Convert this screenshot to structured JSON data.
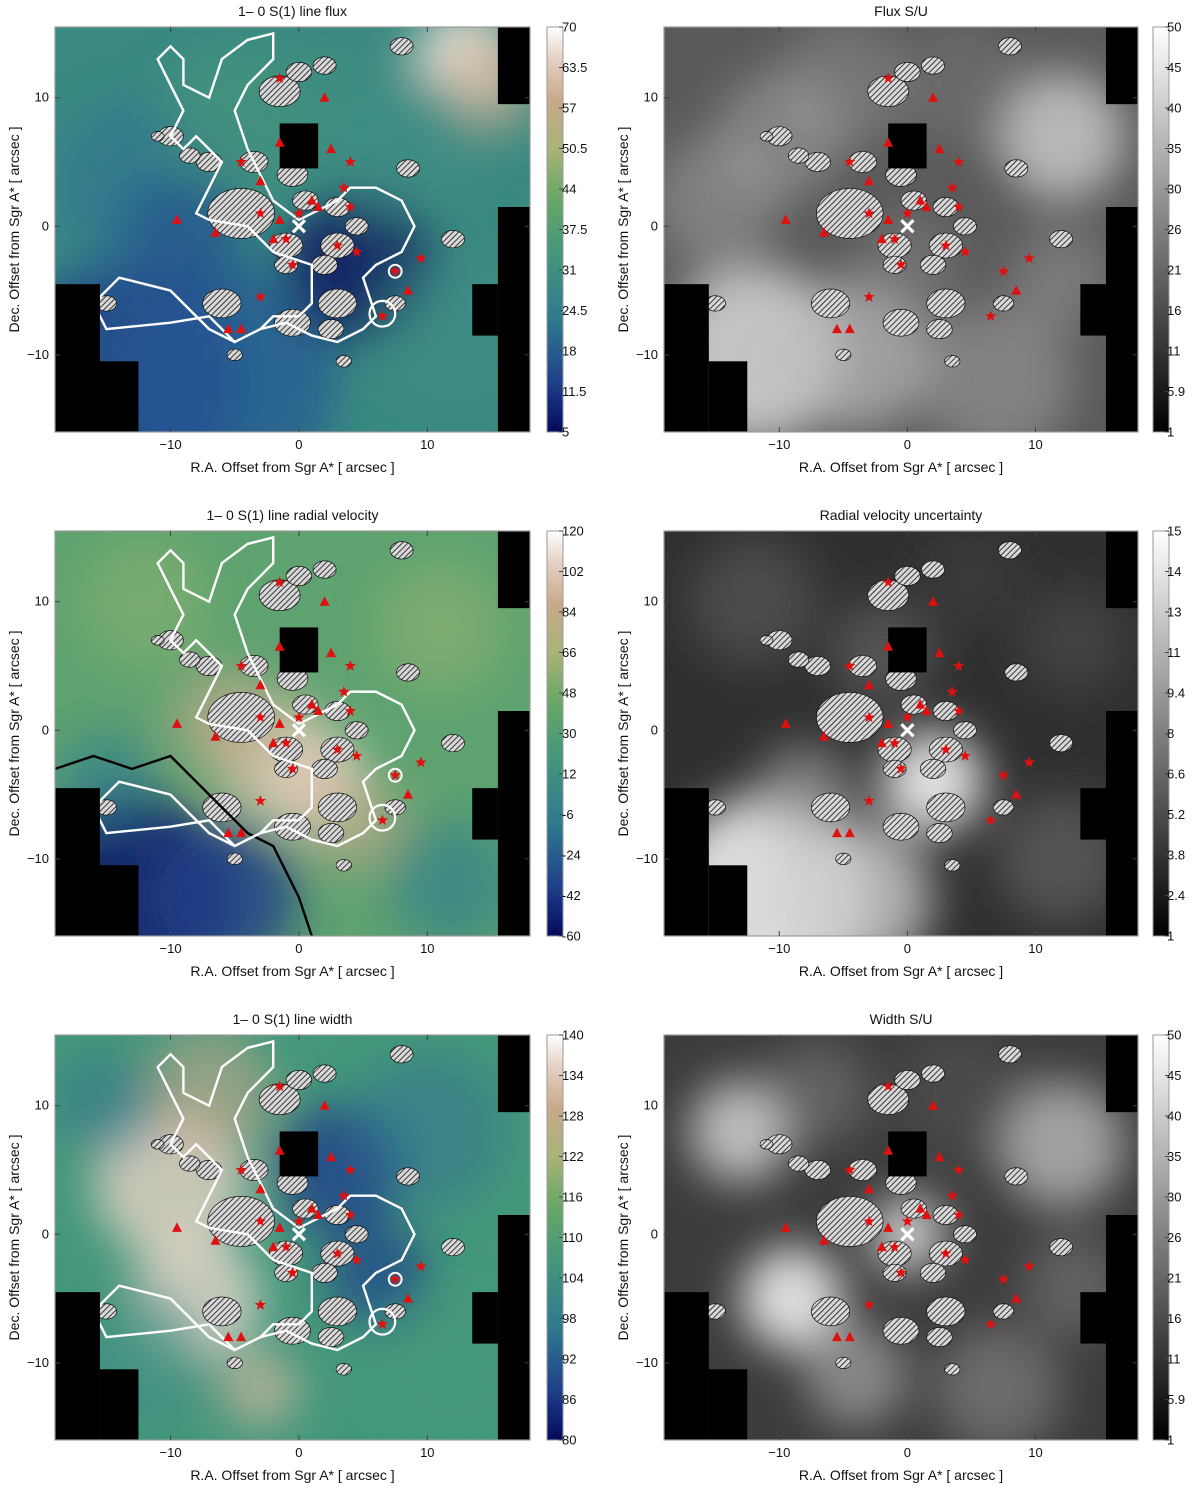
{
  "figure": {
    "background": "#ffffff"
  },
  "chart_data": [
    {
      "type": "heatmap",
      "title": "1– 0 S(1) line flux",
      "xlabel": "R.A. Offset from Sgr A* [ arcsec ]",
      "ylabel": "Dec. Offset from Sgr A* [ arcsec ]",
      "xlim": [
        -19,
        18
      ],
      "ylim": [
        -16,
        15.5
      ],
      "x_ticks": [
        -10,
        0,
        10
      ],
      "y_ticks": [
        -10,
        0,
        10
      ],
      "colormap": "gist_earth",
      "colorbar_ticks": [
        "70",
        "63.5",
        "57",
        "50.5",
        "44",
        "37.5",
        "31",
        "24.5",
        "18",
        "11.5",
        "5"
      ],
      "clim": [
        5,
        70
      ],
      "white_contours": true,
      "black_contours": false
    },
    {
      "type": "heatmap",
      "title": "Flux S/U",
      "xlabel": "R.A. Offset from Sgr A* [ arcsec ]",
      "ylabel": "Dec. Offset from Sgr A* [ arcsec ]",
      "xlim": [
        -19,
        18
      ],
      "ylim": [
        -16,
        15.5
      ],
      "x_ticks": [
        -10,
        0,
        10
      ],
      "y_ticks": [
        -10,
        0,
        10
      ],
      "colormap": "gray",
      "colorbar_ticks": [
        "50",
        "45",
        "40",
        "35",
        "30",
        "26",
        "21",
        "16",
        "11",
        "5.9",
        "1"
      ],
      "clim": [
        1,
        50
      ],
      "white_contours": false,
      "black_contours": false
    },
    {
      "type": "heatmap",
      "title": "1– 0 S(1) line radial velocity",
      "xlabel": "R.A. Offset from Sgr A* [ arcsec ]",
      "ylabel": "Dec. Offset from Sgr A* [ arcsec ]",
      "xlim": [
        -19,
        18
      ],
      "ylim": [
        -16,
        15.5
      ],
      "x_ticks": [
        -10,
        0,
        10
      ],
      "y_ticks": [
        -10,
        0,
        10
      ],
      "colormap": "gist_earth",
      "colorbar_ticks": [
        "120",
        "102",
        "84",
        "66",
        "48",
        "30",
        "12",
        "-6",
        "-24",
        "-42",
        "-60"
      ],
      "clim": [
        -60,
        120
      ],
      "white_contours": true,
      "black_contours": true
    },
    {
      "type": "heatmap",
      "title": "Radial velocity uncertainty",
      "xlabel": "R.A. Offset from Sgr A* [ arcsec ]",
      "ylabel": "Dec. Offset from Sgr A* [ arcsec ]",
      "xlim": [
        -19,
        18
      ],
      "ylim": [
        -16,
        15.5
      ],
      "x_ticks": [
        -10,
        0,
        10
      ],
      "y_ticks": [
        -10,
        0,
        10
      ],
      "colormap": "gray",
      "colorbar_ticks": [
        "15",
        "14",
        "13",
        "11",
        "9.4",
        "8",
        "6.6",
        "5.2",
        "3.8",
        "2.4",
        "1"
      ],
      "clim": [
        1,
        15
      ],
      "white_contours": false,
      "black_contours": false
    },
    {
      "type": "heatmap",
      "title": "1– 0 S(1) line width",
      "xlabel": "R.A. Offset from Sgr A* [ arcsec ]",
      "ylabel": "Dec. Offset from Sgr A* [ arcsec ]",
      "xlim": [
        -19,
        18
      ],
      "ylim": [
        -16,
        15.5
      ],
      "x_ticks": [
        -10,
        0,
        10
      ],
      "y_ticks": [
        -10,
        0,
        10
      ],
      "colormap": "gist_earth",
      "colorbar_ticks": [
        "140",
        "134",
        "128",
        "122",
        "116",
        "110",
        "104",
        "98",
        "92",
        "86",
        "80"
      ],
      "clim": [
        80,
        140
      ],
      "white_contours": true,
      "black_contours": false
    },
    {
      "type": "heatmap",
      "title": "Width S/U",
      "xlabel": "R.A. Offset from Sgr A* [ arcsec ]",
      "ylabel": "Dec. Offset from Sgr A* [ arcsec ]",
      "xlim": [
        -19,
        18
      ],
      "ylim": [
        -16,
        15.5
      ],
      "x_ticks": [
        -10,
        0,
        10
      ],
      "y_ticks": [
        -10,
        0,
        10
      ],
      "colormap": "gray",
      "colorbar_ticks": [
        "50",
        "45",
        "40",
        "35",
        "30",
        "26",
        "21",
        "16",
        "11",
        "5.9",
        "1"
      ],
      "clim": [
        1,
        50
      ],
      "white_contours": false,
      "black_contours": false
    }
  ],
  "overlays": {
    "sgr_a_star": {
      "x": 0,
      "y": 0,
      "marker": "cross",
      "color": "#ffffff"
    },
    "stars_star_markers": {
      "color": "#e01010",
      "points": [
        [
          -1.5,
          11.5
        ],
        [
          -4.5,
          5
        ],
        [
          4,
          5
        ],
        [
          -3,
          1
        ],
        [
          0,
          1
        ],
        [
          4,
          1.5
        ],
        [
          3.5,
          3
        ],
        [
          -1,
          -1
        ],
        [
          3,
          -1.5
        ],
        [
          4.5,
          -2
        ],
        [
          7.5,
          -3.5
        ],
        [
          9.5,
          -2.5
        ],
        [
          -3,
          -5.5
        ],
        [
          6.5,
          -7
        ],
        [
          -0.5,
          -3
        ]
      ]
    },
    "stars_triangle_markers": {
      "color": "#e01010",
      "points": [
        [
          2,
          10
        ],
        [
          -1.5,
          6.5
        ],
        [
          2.5,
          6
        ],
        [
          -3,
          3.5
        ],
        [
          1,
          2
        ],
        [
          1.5,
          1.5
        ],
        [
          -1.5,
          0.5
        ],
        [
          -9.5,
          0.5
        ],
        [
          -6.5,
          -0.5
        ],
        [
          -2,
          -1
        ],
        [
          8.5,
          -5
        ],
        [
          -5.5,
          -8
        ],
        [
          -4.5,
          -8
        ]
      ]
    },
    "masked_rectangles": [
      {
        "x0": -19,
        "x1": -15.5,
        "y0": -16,
        "y1": -4.5
      },
      {
        "x0": -15.5,
        "x1": -15.5,
        "y0": -16,
        "y1": -10.5
      },
      {
        "x0": -15.5,
        "x1": -12.5,
        "y0": -16,
        "y1": -10.5
      },
      {
        "x0": -1.5,
        "x1": 1.5,
        "y0": 4.5,
        "y1": 8
      },
      {
        "x0": 15.5,
        "x1": 18,
        "y0": 9.5,
        "y1": 15.5
      },
      {
        "x0": 15.5,
        "x1": 18,
        "y0": -16,
        "y1": 1.5
      },
      {
        "x0": 13.5,
        "x1": 15.5,
        "y0": -8.5,
        "y1": -4.5
      }
    ],
    "hatched_patches": [
      [
        -1.5,
        10.5,
        1.6
      ],
      [
        0,
        12,
        1.0
      ],
      [
        2,
        12.5,
        0.9
      ],
      [
        -10,
        7,
        1.0
      ],
      [
        -7,
        5,
        1.0
      ],
      [
        -3.5,
        5,
        1.1
      ],
      [
        -8.5,
        5.5,
        0.8
      ],
      [
        -4.5,
        1,
        2.6
      ],
      [
        -0.5,
        4,
        1.2
      ],
      [
        0.5,
        2,
        1.0
      ],
      [
        3,
        1.5,
        1.0
      ],
      [
        4.5,
        0,
        0.9
      ],
      [
        -1,
        -1.5,
        1.3
      ],
      [
        3,
        -1.5,
        1.3
      ],
      [
        2,
        -3,
        1.0
      ],
      [
        -1,
        -3,
        0.9
      ],
      [
        -6,
        -6,
        1.5
      ],
      [
        -0.5,
        -7.5,
        1.4
      ],
      [
        3,
        -6,
        1.5
      ],
      [
        2.5,
        -8,
        1.0
      ],
      [
        7.5,
        -6,
        0.8
      ],
      [
        -15,
        -6,
        0.8
      ],
      [
        8.5,
        4.5,
        0.9
      ],
      [
        12,
        -1,
        0.9
      ],
      [
        8,
        14,
        0.9
      ],
      [
        -5,
        -10,
        0.6
      ],
      [
        3.5,
        -10.5,
        0.6
      ],
      [
        -11,
        7,
        0.5
      ]
    ]
  }
}
